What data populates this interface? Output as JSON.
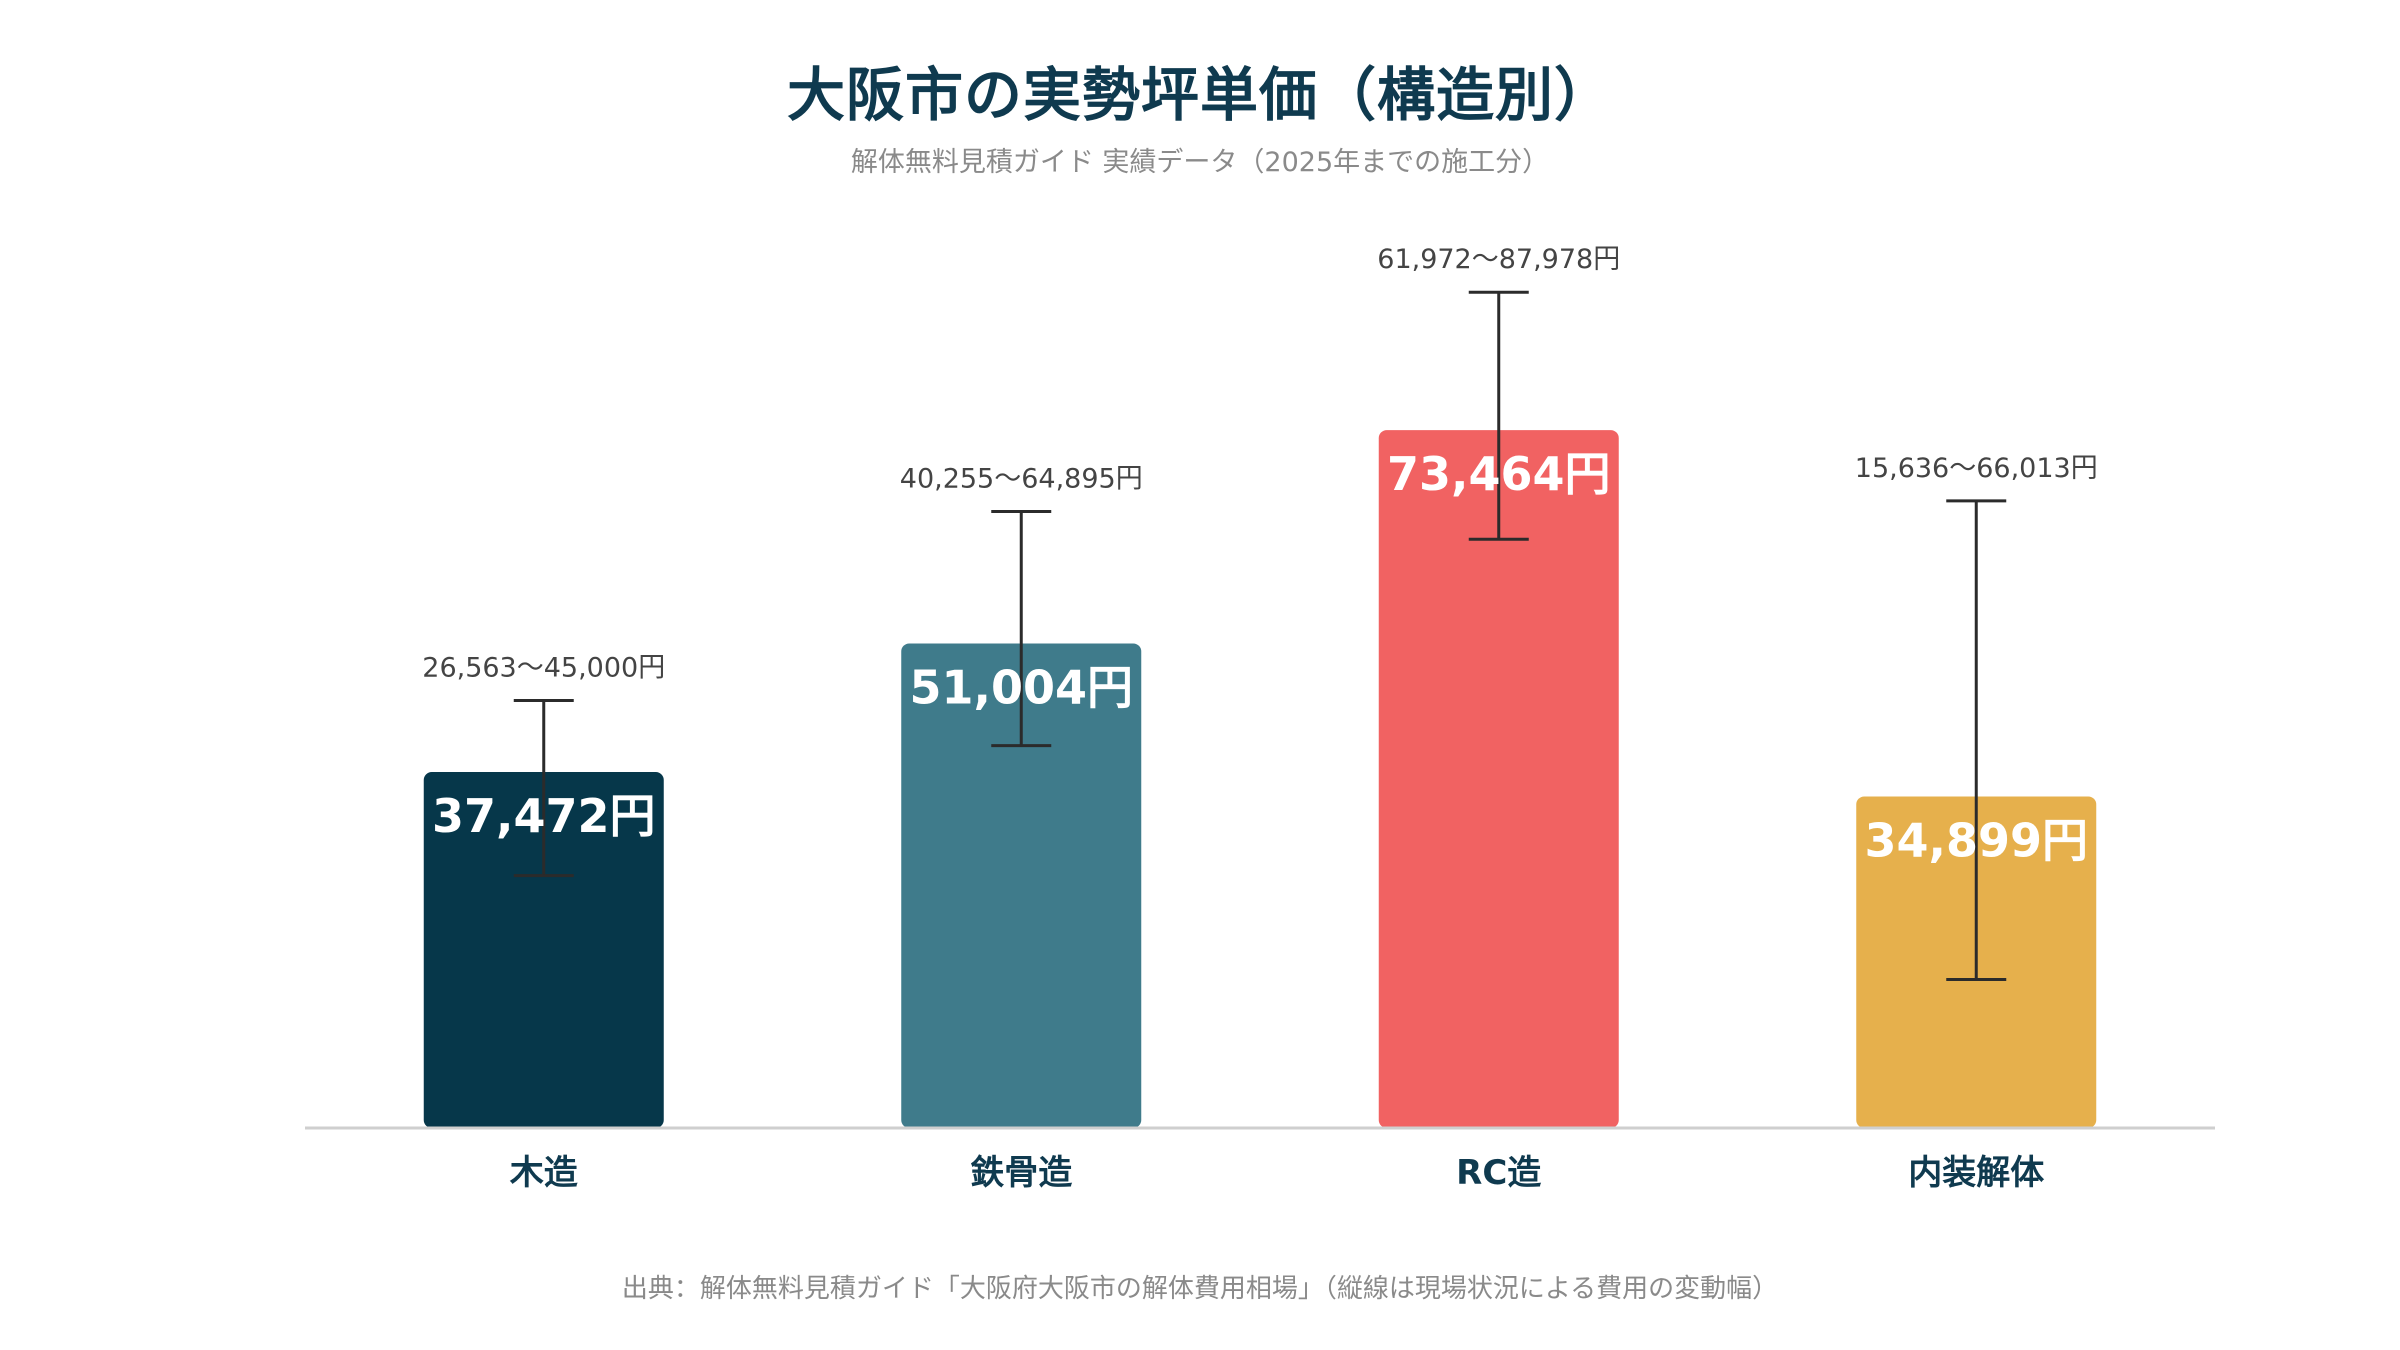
{
  "title": "大阪市の実勢坪単価（構造別）",
  "subtitle": "解体無料見積ガイド 実績データ（2025年までの施工分）",
  "source": "出典：解体無料見積ガイド「大阪府大阪市の解体費用相場」（縦線は現場状況による費用の変動幅）",
  "chart_data": {
    "type": "bar",
    "title": "大阪市の実勢坪単価（構造別）",
    "xlabel": "",
    "ylabel": "",
    "ylim": [
      0,
      105000
    ],
    "grid": false,
    "legend": "none",
    "categories": [
      "木造",
      "鉄骨造",
      "RC造",
      "内装解体"
    ],
    "values": [
      37472,
      51004,
      73464,
      34899
    ],
    "value_labels": [
      "37,472円",
      "51,004円",
      "73,464円",
      "34,899円"
    ],
    "ranges": [
      {
        "low": 26563,
        "high": 45000
      },
      {
        "low": 40255,
        "high": 64895
      },
      {
        "low": 61972,
        "high": 87978
      },
      {
        "low": 15636,
        "high": 66013
      }
    ],
    "range_labels": [
      "26,563〜45,000円",
      "40,255〜64,895円",
      "61,972〜87,978円",
      "15,636〜66,013円"
    ],
    "colors": [
      "#06374a",
      "#3f7b8b",
      "#f16262",
      "#e6b04c"
    ],
    "error_bar_color": "#2b2b2b",
    "baseline_color": "#cfcfcf"
  }
}
